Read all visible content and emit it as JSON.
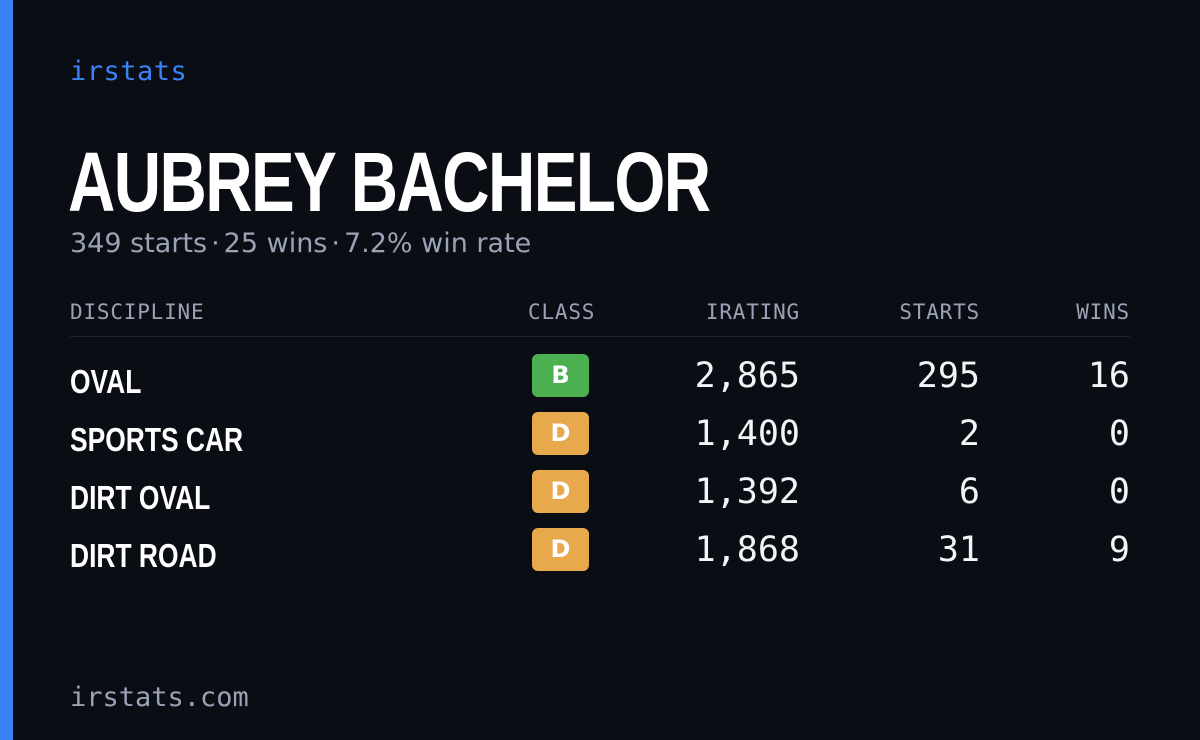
{
  "colors": {
    "background": "#0a0d14",
    "accent": "#3b82f6",
    "muted_text": "#9aa3b5",
    "class_b": "#4caf50",
    "class_d": "#e8a84c"
  },
  "brand": "irstats",
  "driver": {
    "name": "AUBREY BACHELOR",
    "starts_text": "349 starts",
    "wins_text": "25 wins",
    "winrate_text": "7.2% win rate",
    "separator": "·"
  },
  "table": {
    "headers": {
      "discipline": "DISCIPLINE",
      "class": "CLASS",
      "irating": "IRATING",
      "starts": "STARTS",
      "wins": "WINS"
    },
    "rows": [
      {
        "discipline": "OVAL",
        "class": "B",
        "class_color": "#4caf50",
        "irating": "2,865",
        "starts": "295",
        "wins": "16"
      },
      {
        "discipline": "SPORTS CAR",
        "class": "D",
        "class_color": "#e8a84c",
        "irating": "1,400",
        "starts": "2",
        "wins": "0"
      },
      {
        "discipline": "DIRT OVAL",
        "class": "D",
        "class_color": "#e8a84c",
        "irating": "1,392",
        "starts": "6",
        "wins": "0"
      },
      {
        "discipline": "DIRT ROAD",
        "class": "D",
        "class_color": "#e8a84c",
        "irating": "1,868",
        "starts": "31",
        "wins": "9"
      }
    ]
  },
  "footer": "irstats.com"
}
